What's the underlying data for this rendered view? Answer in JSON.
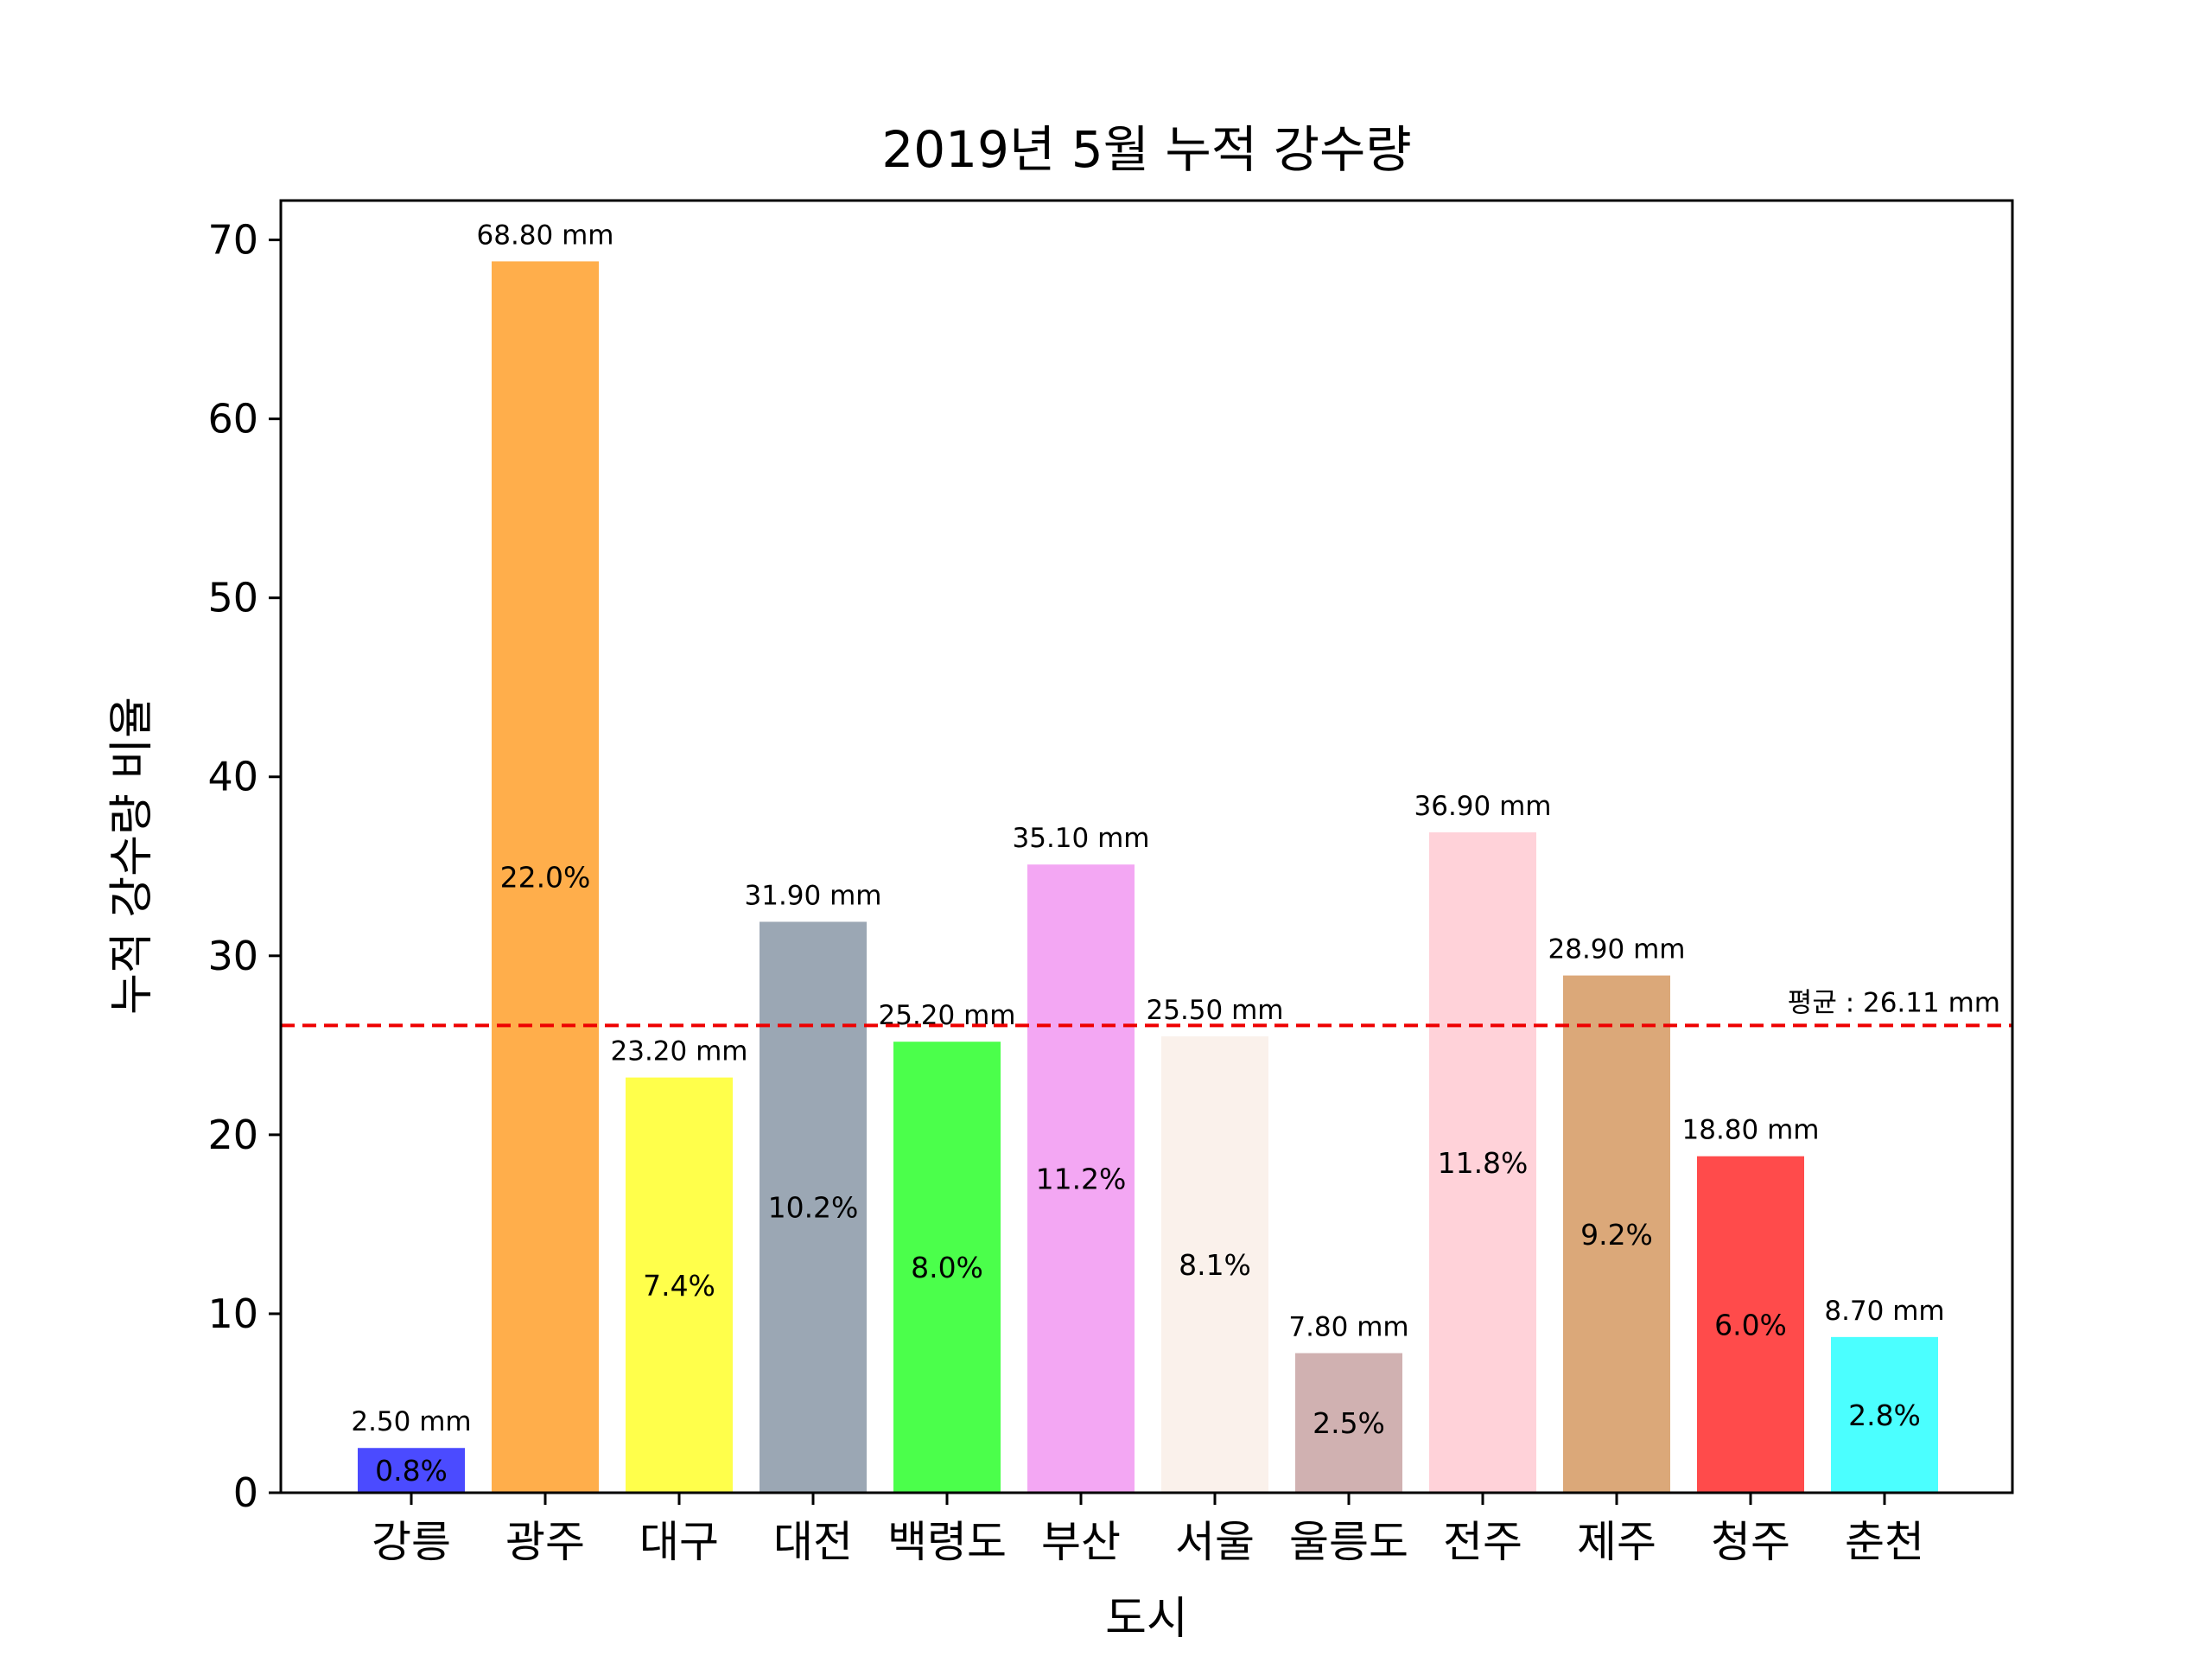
{
  "chart_data": {
    "type": "bar",
    "title": "2019년 5월 누적 강수량",
    "xlabel": "도시",
    "ylabel": "누적 강수량 비율",
    "ylim": [
      0,
      72.2
    ],
    "yticks": [
      0,
      10,
      20,
      30,
      40,
      50,
      60,
      70
    ],
    "grid": false,
    "categories": [
      "강릉",
      "광주",
      "대구",
      "대전",
      "백령도",
      "부산",
      "서울",
      "울릉도",
      "전주",
      "제주",
      "청주",
      "춘천"
    ],
    "values": [
      2.5,
      68.8,
      23.2,
      31.9,
      25.2,
      35.1,
      25.5,
      7.8,
      36.9,
      28.9,
      18.8,
      8.7
    ],
    "value_labels": [
      "2.50 mm",
      "68.80 mm",
      "23.20 mm",
      "31.90 mm",
      "25.20 mm",
      "35.10 mm",
      "25.50 mm",
      "7.80 mm",
      "36.90 mm",
      "28.90 mm",
      "18.80 mm",
      "8.70 mm"
    ],
    "percent_labels": [
      "0.8%",
      "22.0%",
      "7.4%",
      "10.2%",
      "8.0%",
      "11.2%",
      "8.1%",
      "2.5%",
      "11.8%",
      "9.2%",
      "6.0%",
      "2.8%"
    ],
    "colors": [
      "#4b4bff",
      "#ffae4b",
      "#ffff4b",
      "#9ba7b4",
      "#4bff4b",
      "#f3a7f3",
      "#faf1eb",
      "#d0b1b1",
      "#ffd2d9",
      "#dba879",
      "#ff4b4b",
      "#4bffff"
    ],
    "mean": {
      "value": 26.11,
      "label": "평균 : 26.11 mm",
      "color": "#ee0000",
      "style": "dashed"
    }
  }
}
